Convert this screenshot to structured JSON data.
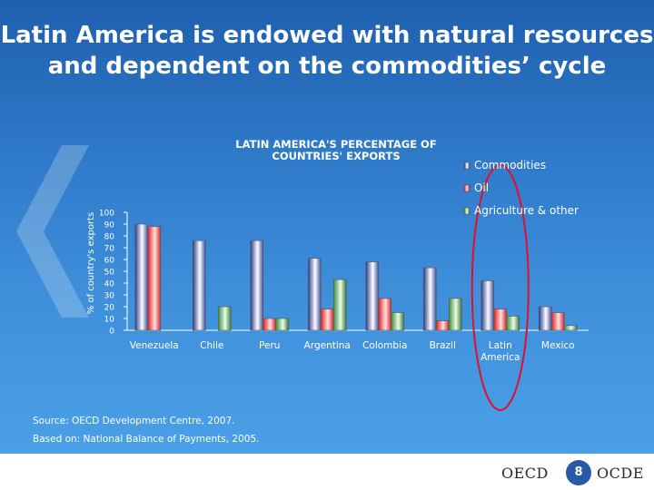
{
  "slide": {
    "title_line1": "Latin America is endowed with natural resources",
    "title_line2": "and dependent on the commodities’ cycle",
    "source": "Source: OECD Development Centre, 2007.",
    "based_on": "Based on: National Balance of Payments, 2005.",
    "logo_left": "OECD",
    "logo_right": "OCDE",
    "page_number": "8"
  },
  "chart_data": {
    "type": "bar",
    "title": "LATIN AMERICA'S PERCENTAGE OF COUNTRIES' EXPORTS",
    "title_lines": [
      "LATIN AMERICA'S PERCENTAGE OF",
      "COUNTRIES' EXPORTS"
    ],
    "ylabel": "% of country's exports",
    "ylim": [
      0,
      100
    ],
    "yticks": [
      0,
      10,
      20,
      30,
      40,
      50,
      60,
      70,
      80,
      90,
      100
    ],
    "categories": [
      "Venezuela",
      "Chile",
      "Peru",
      "Argentina",
      "Colombia",
      "Brazil",
      "Latin America",
      "Mexico"
    ],
    "category_lines": [
      [
        "Venezuela"
      ],
      [
        "Chile"
      ],
      [
        "Peru"
      ],
      [
        "Argentina"
      ],
      [
        "Colombia"
      ],
      [
        "Brazil"
      ],
      [
        "Latin",
        "America"
      ],
      [
        "Mexico"
      ]
    ],
    "series": [
      {
        "name": "Commodities",
        "values": [
          90,
          76,
          76,
          61,
          58,
          53,
          42,
          20
        ],
        "color": "#9ea8d8"
      },
      {
        "name": "Oil",
        "values": [
          88,
          0,
          10,
          18,
          27,
          8,
          18,
          15
        ],
        "color": "#f08a8a"
      },
      {
        "name": "Agriculture & other",
        "values": [
          0,
          20,
          10,
          43,
          15,
          27,
          12,
          4
        ],
        "color": "#a8d8a0"
      }
    ],
    "legend_position": "top-right",
    "grid": false,
    "highlight": {
      "category": "Latin America",
      "shape": "ellipse",
      "color": "#e0102a"
    }
  }
}
